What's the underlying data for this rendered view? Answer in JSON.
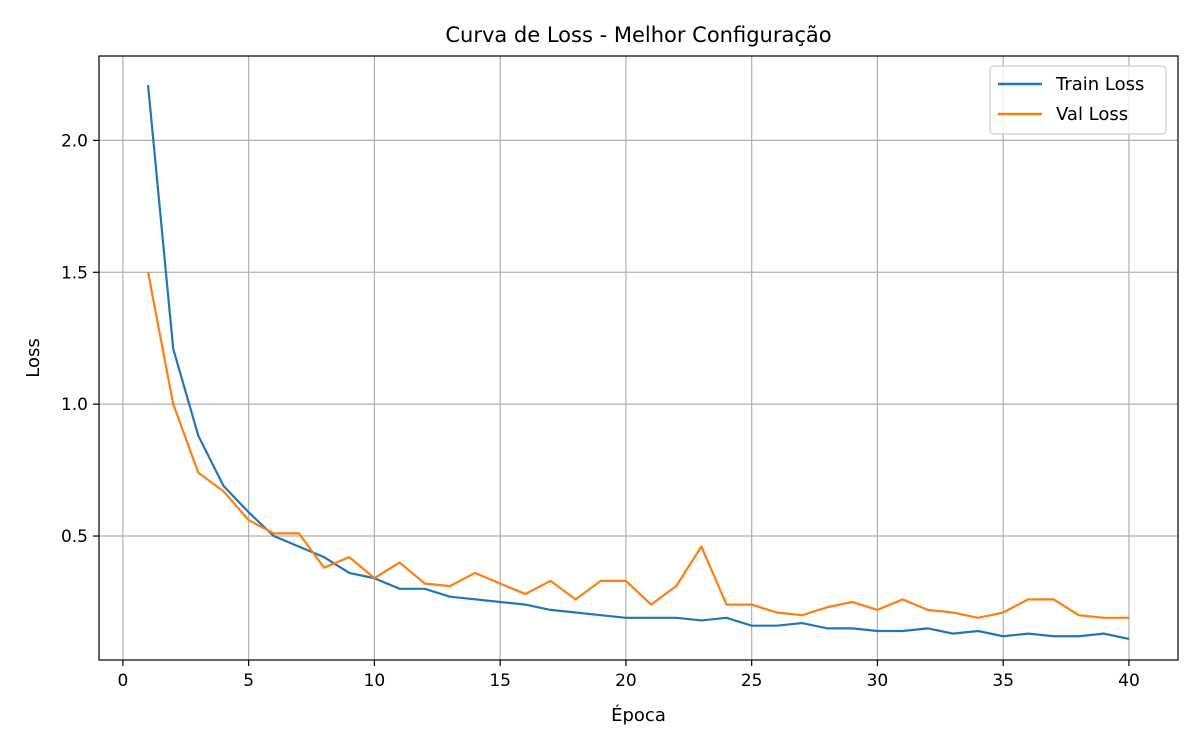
{
  "chart_data": {
    "type": "line",
    "title": "Curva de Loss - Melhor Configuração",
    "xlabel": "Época",
    "ylabel": "Loss",
    "xlim": [
      -0.95,
      41.95
    ],
    "ylim": [
      0.03,
      2.32
    ],
    "xticks": [
      0,
      5,
      10,
      15,
      20,
      25,
      30,
      35,
      40
    ],
    "yticks": [
      0.5,
      1.0,
      1.5,
      2.0
    ],
    "ytick_labels": [
      "0.5",
      "1.0",
      "1.5",
      "2.0"
    ],
    "grid": true,
    "legend_position": "top-right",
    "x": [
      1,
      2,
      3,
      4,
      5,
      6,
      7,
      8,
      9,
      10,
      11,
      12,
      13,
      14,
      15,
      16,
      17,
      18,
      19,
      20,
      21,
      22,
      23,
      24,
      25,
      26,
      27,
      28,
      29,
      30,
      31,
      32,
      33,
      34,
      35,
      36,
      37,
      38,
      39,
      40
    ],
    "series": [
      {
        "name": "Train Loss",
        "color": "#1f77b4",
        "values": [
          2.21,
          1.21,
          0.88,
          0.69,
          0.59,
          0.5,
          0.46,
          0.42,
          0.36,
          0.34,
          0.3,
          0.3,
          0.27,
          0.26,
          0.25,
          0.24,
          0.22,
          0.21,
          0.2,
          0.19,
          0.19,
          0.19,
          0.18,
          0.19,
          0.16,
          0.16,
          0.17,
          0.15,
          0.15,
          0.14,
          0.14,
          0.15,
          0.13,
          0.14,
          0.12,
          0.13,
          0.12,
          0.12,
          0.13,
          0.11
        ]
      },
      {
        "name": "Val Loss",
        "color": "#ff7f0e",
        "values": [
          1.5,
          1.0,
          0.74,
          0.67,
          0.56,
          0.51,
          0.51,
          0.38,
          0.42,
          0.34,
          0.4,
          0.32,
          0.31,
          0.36,
          0.32,
          0.28,
          0.33,
          0.26,
          0.33,
          0.33,
          0.24,
          0.31,
          0.46,
          0.24,
          0.24,
          0.21,
          0.2,
          0.23,
          0.25,
          0.22,
          0.26,
          0.22,
          0.21,
          0.19,
          0.21,
          0.26,
          0.26,
          0.2,
          0.19,
          0.19
        ]
      }
    ]
  }
}
